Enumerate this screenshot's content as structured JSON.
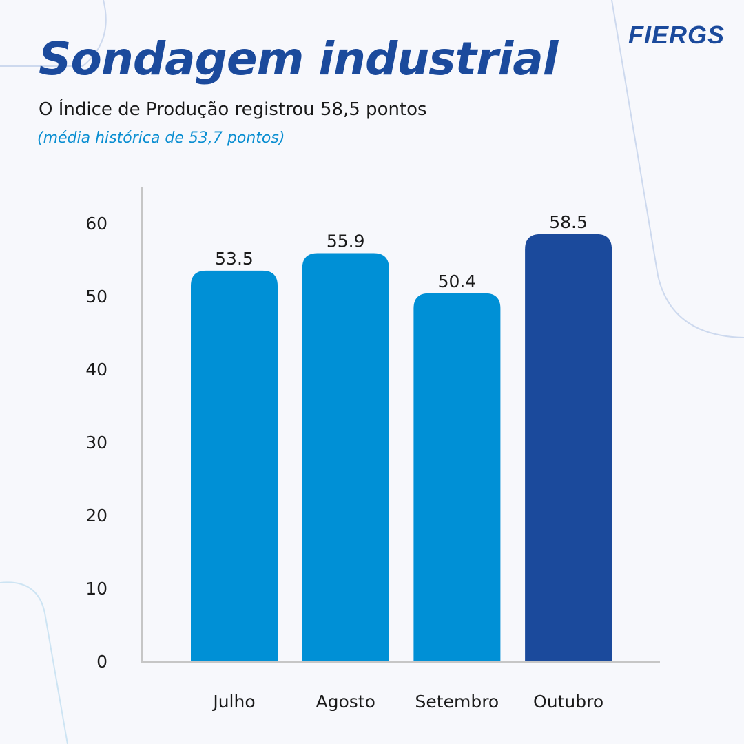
{
  "header": {
    "logo": "FIERGS",
    "title": "Sondagem industrial",
    "subtitle": "O Índice de Produção registrou 58,5 pontos",
    "note": "(média histórica de 53,7 pontos)"
  },
  "colors": {
    "primary": "#1b4a9c",
    "bar": "#0090d6",
    "highlight": "#1b4a9c",
    "note": "#0a8ed1"
  },
  "chart_data": {
    "type": "bar",
    "categories": [
      "Julho",
      "Agosto",
      "Setembro",
      "Outubro"
    ],
    "values": [
      53.5,
      55.9,
      50.4,
      58.5
    ],
    "value_labels": [
      "53.5",
      "55.9",
      "50.4",
      "58.5"
    ],
    "highlight_index": 3,
    "yticks": [
      0,
      10,
      20,
      30,
      40,
      50,
      60
    ],
    "ylim": [
      0,
      65
    ],
    "grid": false,
    "xlabel": "",
    "ylabel": ""
  }
}
